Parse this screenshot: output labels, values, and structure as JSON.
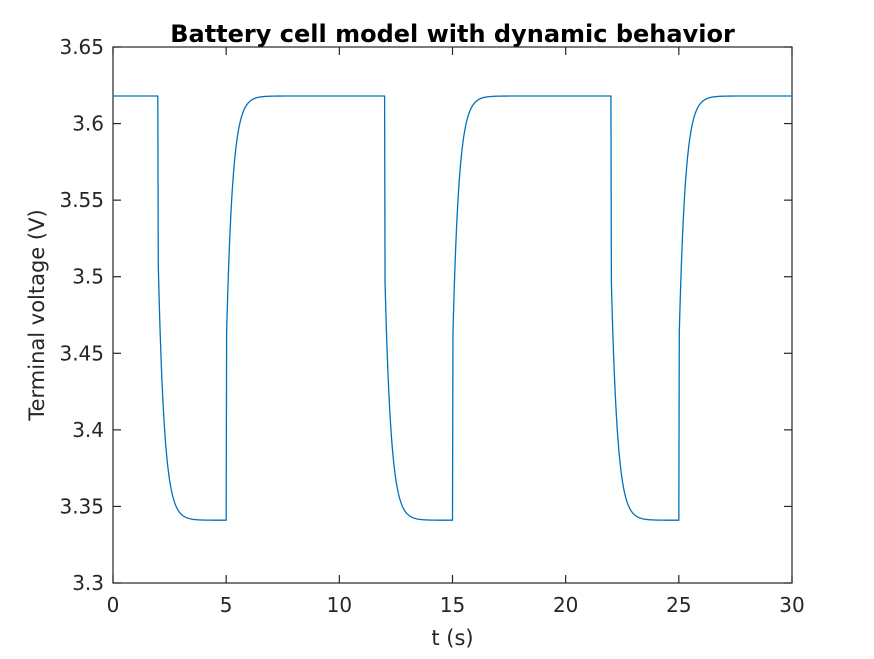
{
  "figure": {
    "background": "#ffffff"
  },
  "chart_data": {
    "type": "line",
    "title": "Battery cell model with dynamic behavior",
    "xlabel": "t (s)",
    "ylabel": "Terminal voltage (V)",
    "xlim": [
      0,
      30
    ],
    "ylim": [
      3.3,
      3.65
    ],
    "x_ticks": [
      0,
      5,
      10,
      15,
      20,
      25,
      30
    ],
    "x_tick_labels": [
      "0",
      "5",
      "10",
      "15",
      "20",
      "25",
      "30"
    ],
    "y_ticks": [
      3.3,
      3.35,
      3.4,
      3.45,
      3.5,
      3.55,
      3.6,
      3.65
    ],
    "y_tick_labels": [
      "3.3",
      "3.35",
      "3.4",
      "3.45",
      "3.5",
      "3.55",
      "3.6",
      "3.65"
    ],
    "grid": false,
    "legend": null,
    "box": true,
    "tick_direction": "in",
    "line_color": "#0072BD",
    "axis_color": "#262626",
    "title_color": "#000000",
    "series": [
      {
        "name": "Terminal voltage",
        "model": {
          "description": "Rest at 3.618 V; three 3-s discharge pulses. At load-on the voltage steps down ~0.11 V instantly then relaxes exponentially (tau ~0.27 s) to 3.341 V; at load-off it steps up ~0.11 V and recovers exponentially to 3.618 V.",
          "rest_voltage_V": 3.618,
          "loaded_voltage_V": 3.341,
          "instant_step_V": 0.11,
          "rc_time_constant_s": 0.27,
          "pulse_intervals_s": [
            [
              2,
              5
            ],
            [
              12,
              15
            ],
            [
              22,
              25
            ]
          ],
          "t_start": 0,
          "t_end": 30,
          "sample_dt": 0.02
        },
        "key_points": [
          {
            "t": 0,
            "v": 3.618
          },
          {
            "t": 2,
            "v": 3.618
          },
          {
            "t": 2,
            "v": 3.508
          },
          {
            "t": 3.5,
            "v": 3.341
          },
          {
            "t": 5,
            "v": 3.341
          },
          {
            "t": 5,
            "v": 3.451
          },
          {
            "t": 6.5,
            "v": 3.618
          },
          {
            "t": 12,
            "v": 3.618
          },
          {
            "t": 12,
            "v": 3.508
          },
          {
            "t": 13.5,
            "v": 3.341
          },
          {
            "t": 15,
            "v": 3.341
          },
          {
            "t": 15,
            "v": 3.451
          },
          {
            "t": 16.5,
            "v": 3.618
          },
          {
            "t": 22,
            "v": 3.618
          },
          {
            "t": 22,
            "v": 3.508
          },
          {
            "t": 23.5,
            "v": 3.341
          },
          {
            "t": 25,
            "v": 3.341
          },
          {
            "t": 25,
            "v": 3.451
          },
          {
            "t": 26.5,
            "v": 3.618
          },
          {
            "t": 30,
            "v": 3.618
          }
        ]
      }
    ]
  }
}
